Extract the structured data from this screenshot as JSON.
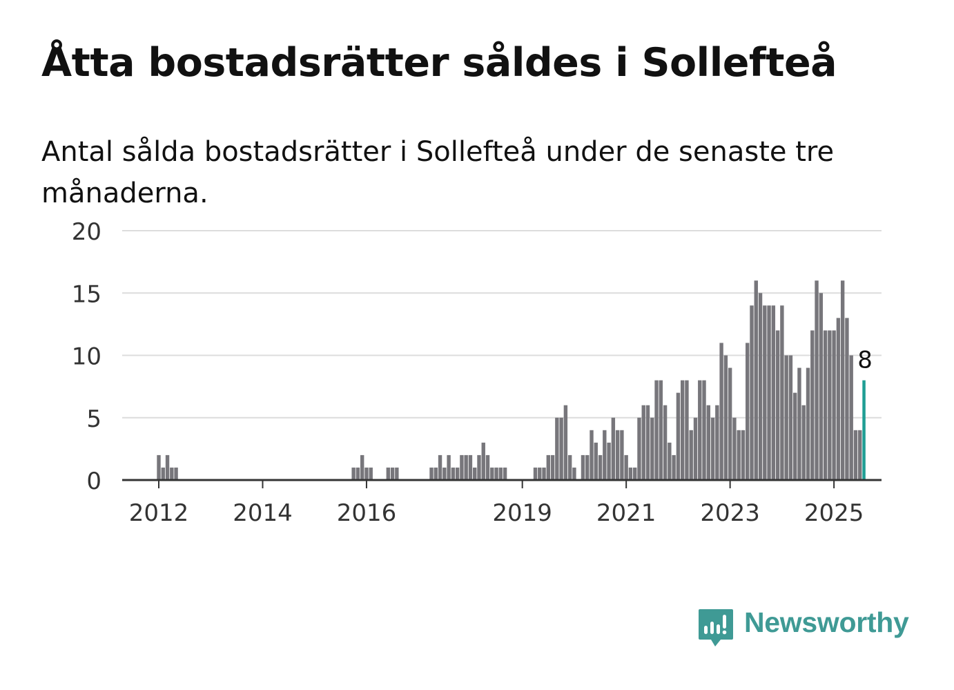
{
  "title": "Åtta bostadsrätter såldes i Sollefteå",
  "subtitle": "Antal sålda bostadsrätter i Sollefteå under de senaste tre månaderna.",
  "brand": {
    "name": "Newsworthy",
    "color": "#3f9a95",
    "icon": "newsworthy-logo-icon"
  },
  "chart_data": {
    "type": "bar",
    "ylim": [
      0,
      20
    ],
    "yticks": [
      0,
      5,
      10,
      15,
      20
    ],
    "xticks": [
      "2012",
      "2014",
      "2016",
      "2019",
      "2021",
      "2023",
      "2025"
    ],
    "grid": true,
    "bar_color": "#77767b",
    "highlight_color": "#1f9e94",
    "highlight_label": "8",
    "start_month": "2011-11",
    "values": [
      0,
      0,
      2,
      1,
      2,
      1,
      1,
      0,
      0,
      0,
      0,
      0,
      0,
      0,
      0,
      0,
      0,
      0,
      0,
      0,
      0,
      0,
      0,
      0,
      0,
      0,
      0,
      0,
      0,
      0,
      0,
      0,
      0,
      0,
      0,
      0,
      0,
      0,
      0,
      0,
      0,
      0,
      0,
      0,
      0,
      0,
      0,
      1,
      1,
      2,
      1,
      1,
      0,
      0,
      0,
      1,
      1,
      1,
      0,
      0,
      0,
      0,
      0,
      0,
      0,
      1,
      1,
      2,
      1,
      2,
      1,
      1,
      2,
      2,
      2,
      1,
      2,
      3,
      2,
      1,
      1,
      1,
      1,
      0,
      0,
      0,
      0,
      0,
      0,
      1,
      1,
      1,
      2,
      2,
      5,
      5,
      6,
      2,
      1,
      0,
      2,
      2,
      4,
      3,
      2,
      4,
      3,
      5,
      4,
      4,
      2,
      1,
      1,
      5,
      6,
      6,
      5,
      8,
      8,
      6,
      3,
      2,
      7,
      8,
      8,
      4,
      5,
      8,
      8,
      6,
      5,
      6,
      11,
      10,
      9,
      5,
      4,
      4,
      11,
      14,
      16,
      15,
      14,
      14,
      14,
      12,
      14,
      10,
      10,
      7,
      9,
      6,
      9,
      12,
      16,
      15,
      12,
      12,
      12,
      13,
      16,
      13,
      10,
      4,
      4,
      8
    ]
  }
}
